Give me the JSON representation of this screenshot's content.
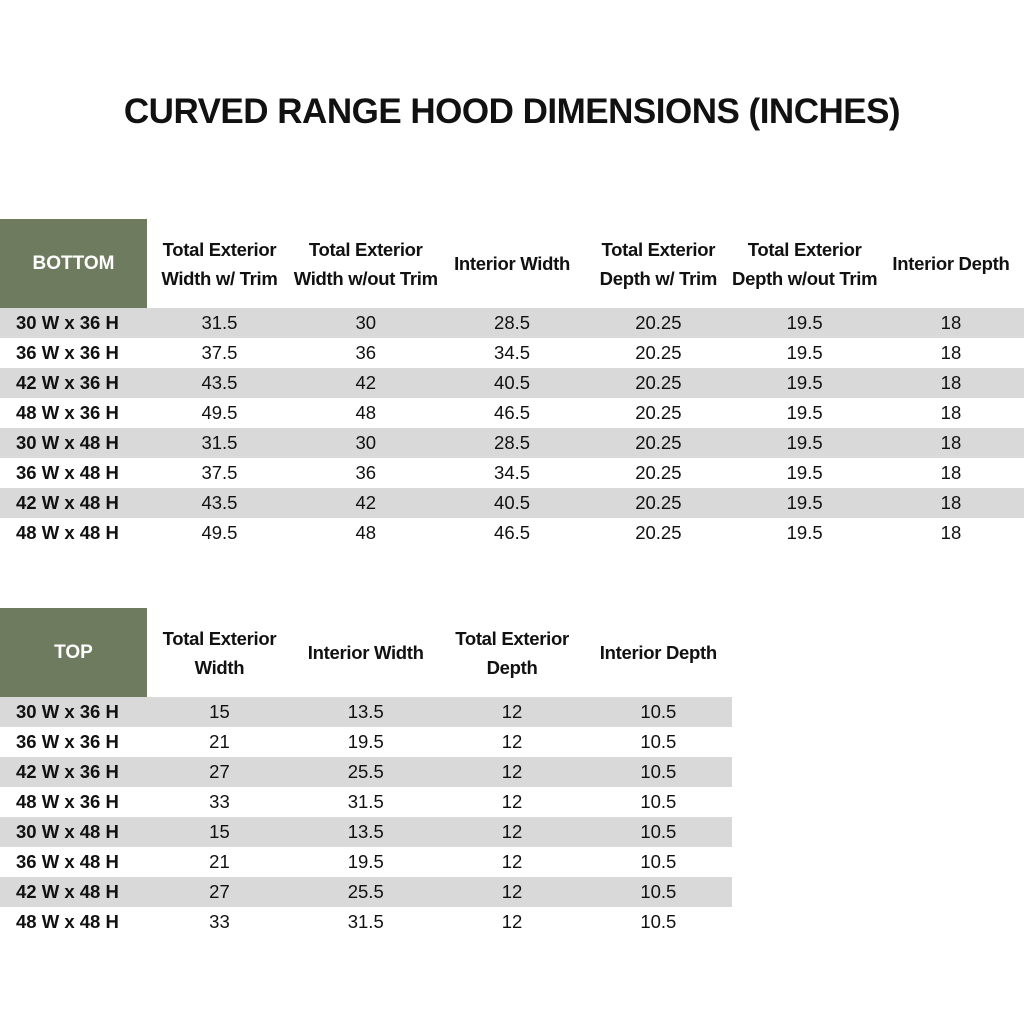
{
  "title": "CURVED RANGE HOOD DIMENSIONS (INCHES)",
  "tables": [
    {
      "header": "BOTTOM",
      "columns": [
        "Total Exterior Width w/ Trim",
        "Total Exterior Width w/out Trim",
        "Interior Width",
        "Total Exterior Depth w/ Trim",
        "Total Exterior Depth w/out Trim",
        "Interior Depth"
      ],
      "rows": [
        [
          "30 W x 36 H",
          31.5,
          30,
          28.5,
          20.25,
          19.5,
          18
        ],
        [
          "36 W x 36 H",
          37.5,
          36,
          34.5,
          20.25,
          19.5,
          18
        ],
        [
          "42 W x 36 H",
          43.5,
          42,
          40.5,
          20.25,
          19.5,
          18
        ],
        [
          "48 W x 36 H",
          49.5,
          48,
          46.5,
          20.25,
          19.5,
          18
        ],
        [
          "30 W x 48 H",
          31.5,
          30,
          28.5,
          20.25,
          19.5,
          18
        ],
        [
          "36 W x 48 H",
          37.5,
          36,
          34.5,
          20.25,
          19.5,
          18
        ],
        [
          "42 W x 48 H",
          43.5,
          42,
          40.5,
          20.25,
          19.5,
          18
        ],
        [
          "48 W x 48 H",
          49.5,
          48,
          46.5,
          20.25,
          19.5,
          18
        ]
      ]
    },
    {
      "header": "TOP",
      "columns": [
        "Total Exterior Width",
        "Interior Width",
        "Total Exterior Depth",
        "Interior Depth"
      ],
      "rows": [
        [
          "30 W x 36 H",
          15,
          13.5,
          12,
          10.5
        ],
        [
          "36 W x 36 H",
          21,
          19.5,
          12,
          10.5
        ],
        [
          "42 W x 36 H",
          27,
          25.5,
          12,
          10.5
        ],
        [
          "48 W x 36 H",
          33,
          31.5,
          12,
          10.5
        ],
        [
          "30 W x 48 H",
          15,
          13.5,
          12,
          10.5
        ],
        [
          "36 W x 48 H",
          21,
          19.5,
          12,
          10.5
        ],
        [
          "42 W x 48 H",
          27,
          25.5,
          12,
          10.5
        ],
        [
          "48 W x 48 H",
          33,
          31.5,
          12,
          10.5
        ]
      ]
    }
  ]
}
